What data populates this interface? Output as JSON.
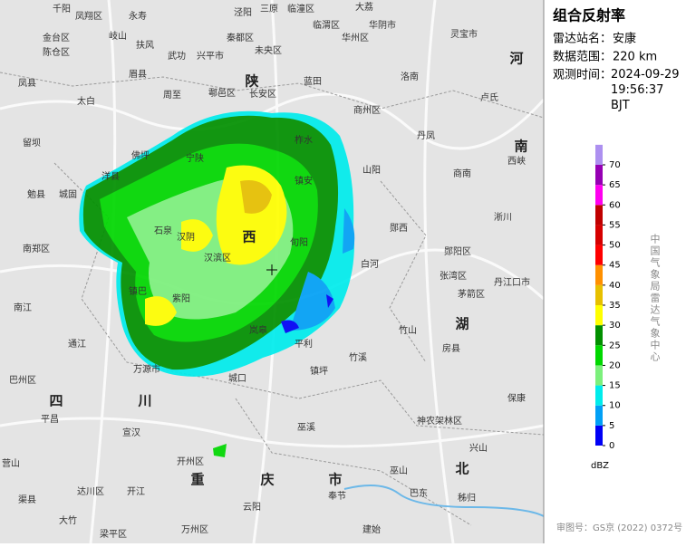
{
  "header": {
    "title": "组合反射率",
    "info": [
      {
        "label": "雷达站名：",
        "value": "安康"
      },
      {
        "label": "数据范围：",
        "value": "220 km"
      },
      {
        "label": "观测时间：",
        "value": "2024-09-29 19:56:37 BJT"
      }
    ]
  },
  "colorbar": {
    "unit": "dBZ",
    "ticks": [
      0,
      5,
      10,
      15,
      20,
      25,
      30,
      35,
      40,
      45,
      50,
      55,
      60,
      65,
      70
    ],
    "colors": [
      "#0000f6",
      "#01a0f6",
      "#00ecec",
      "#7cf07c",
      "#00d800",
      "#019000",
      "#ffff00",
      "#e7c000",
      "#ff9000",
      "#ff0000",
      "#d60000",
      "#c00000",
      "#ff00f0",
      "#9600b4",
      "#ad90f0"
    ]
  },
  "agency": "中国气象局雷达气象中心",
  "footer": "审图号：GS京 (2022) 0372号",
  "map": {
    "regions": [
      "陕",
      "西",
      "四",
      "川",
      "重",
      "庆",
      "市",
      "湖",
      "北",
      "南",
      "河"
    ],
    "places": [
      "千阳",
      "凤翔区",
      "永寿",
      "泾阳",
      "三原",
      "临潼区",
      "大荔",
      "金台区",
      "陈仓区",
      "岐山",
      "扶风",
      "武功",
      "兴平市",
      "秦都区",
      "未央区",
      "临渭区",
      "华州区",
      "华阴市",
      "灵宝市",
      "凤县",
      "眉县",
      "周至",
      "鄠邑区",
      "长安区",
      "蓝田",
      "洛南",
      "卢氏",
      "太白",
      "商州区",
      "丹凤",
      "留坝",
      "佛坪",
      "宁陕",
      "柞水",
      "商南",
      "西峡",
      "勉县",
      "城固",
      "洋县",
      "镇安",
      "山阳",
      "淅川",
      "南郑区",
      "石泉",
      "汉阴",
      "汉滨区",
      "旬阳",
      "郧西",
      "郧阳区",
      "张湾区",
      "茅箭区",
      "丹江口市",
      "镇巴",
      "紫阳",
      "岚皋",
      "平利",
      "白河",
      "竹山",
      "房县",
      "南江",
      "通江",
      "万源市",
      "城口",
      "镇坪",
      "竹溪",
      "保康",
      "巴州区",
      "平昌",
      "宣汉",
      "巫溪",
      "神农架林区",
      "兴山",
      "营山",
      "达川区",
      "开江",
      "开州区",
      "云阳",
      "奉节",
      "巫山",
      "巴东",
      "秭归",
      "渠县",
      "大竹",
      "梁平区",
      "万州区",
      "建始"
    ]
  }
}
